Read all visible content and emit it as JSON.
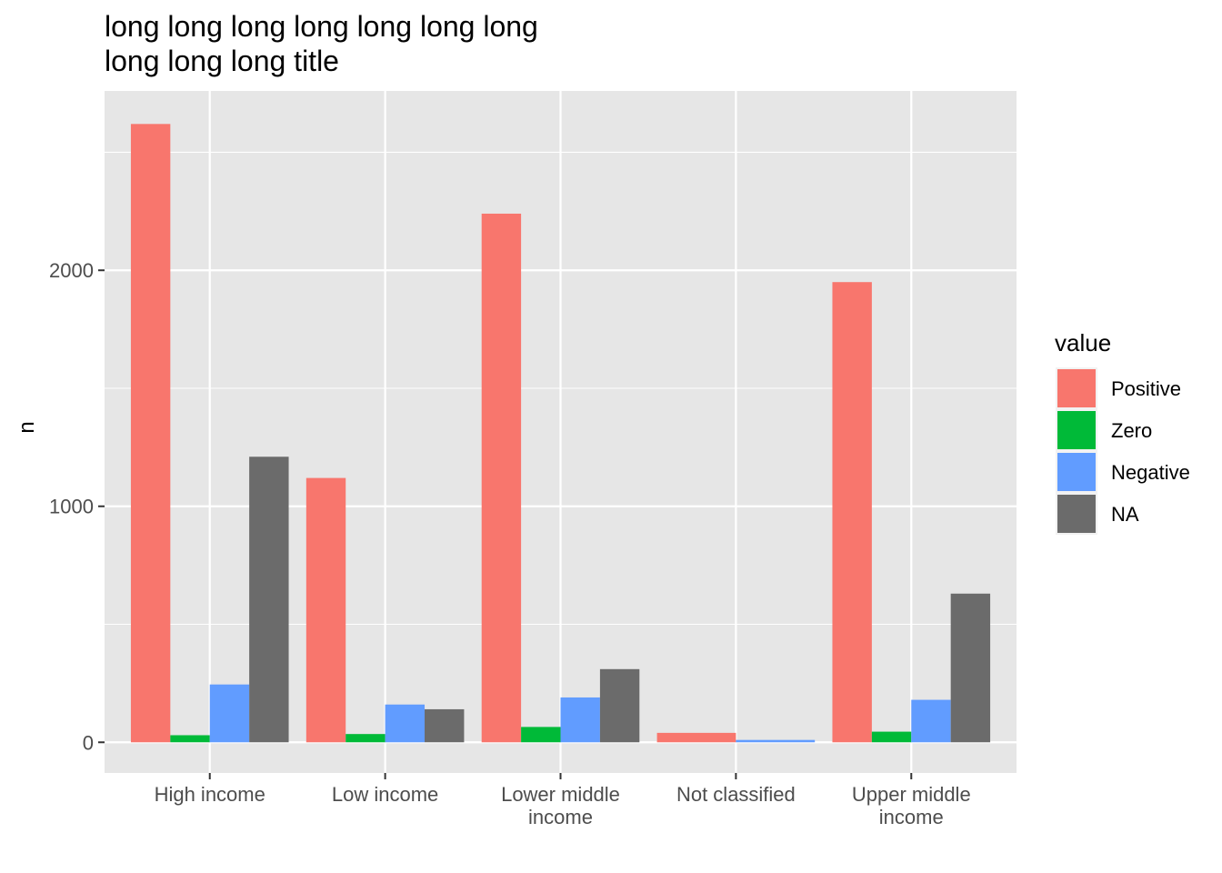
{
  "chart_data": {
    "type": "bar",
    "title_lines": [
      "long long long long long long long",
      "long long long title"
    ],
    "xlabel": "",
    "ylabel": "n",
    "categories": [
      [
        "High income"
      ],
      [
        "Low income"
      ],
      [
        "Lower middle",
        "income"
      ],
      [
        "Not classified"
      ],
      [
        "Upper middle",
        "income"
      ]
    ],
    "series": [
      {
        "name": "Positive",
        "color": "#F8766D",
        "values": [
          2620,
          1120,
          2240,
          40,
          1950
        ]
      },
      {
        "name": "Zero",
        "color": "#00BA38",
        "values": [
          30,
          35,
          65,
          null,
          45
        ]
      },
      {
        "name": "Negative",
        "color": "#619CFF",
        "values": [
          245,
          160,
          190,
          10,
          180
        ]
      },
      {
        "name": "NA",
        "color": "#6B6B6B",
        "values": [
          1210,
          140,
          310,
          null,
          630
        ]
      }
    ],
    "ylim": [
      -130,
      2760
    ],
    "yticks": [
      0,
      1000,
      2000
    ],
    "yticks_minor": [
      500,
      1500,
      2500
    ],
    "legend": {
      "title": "value",
      "position": "right"
    },
    "grid": true,
    "panel_background": "#E6E6E6"
  }
}
